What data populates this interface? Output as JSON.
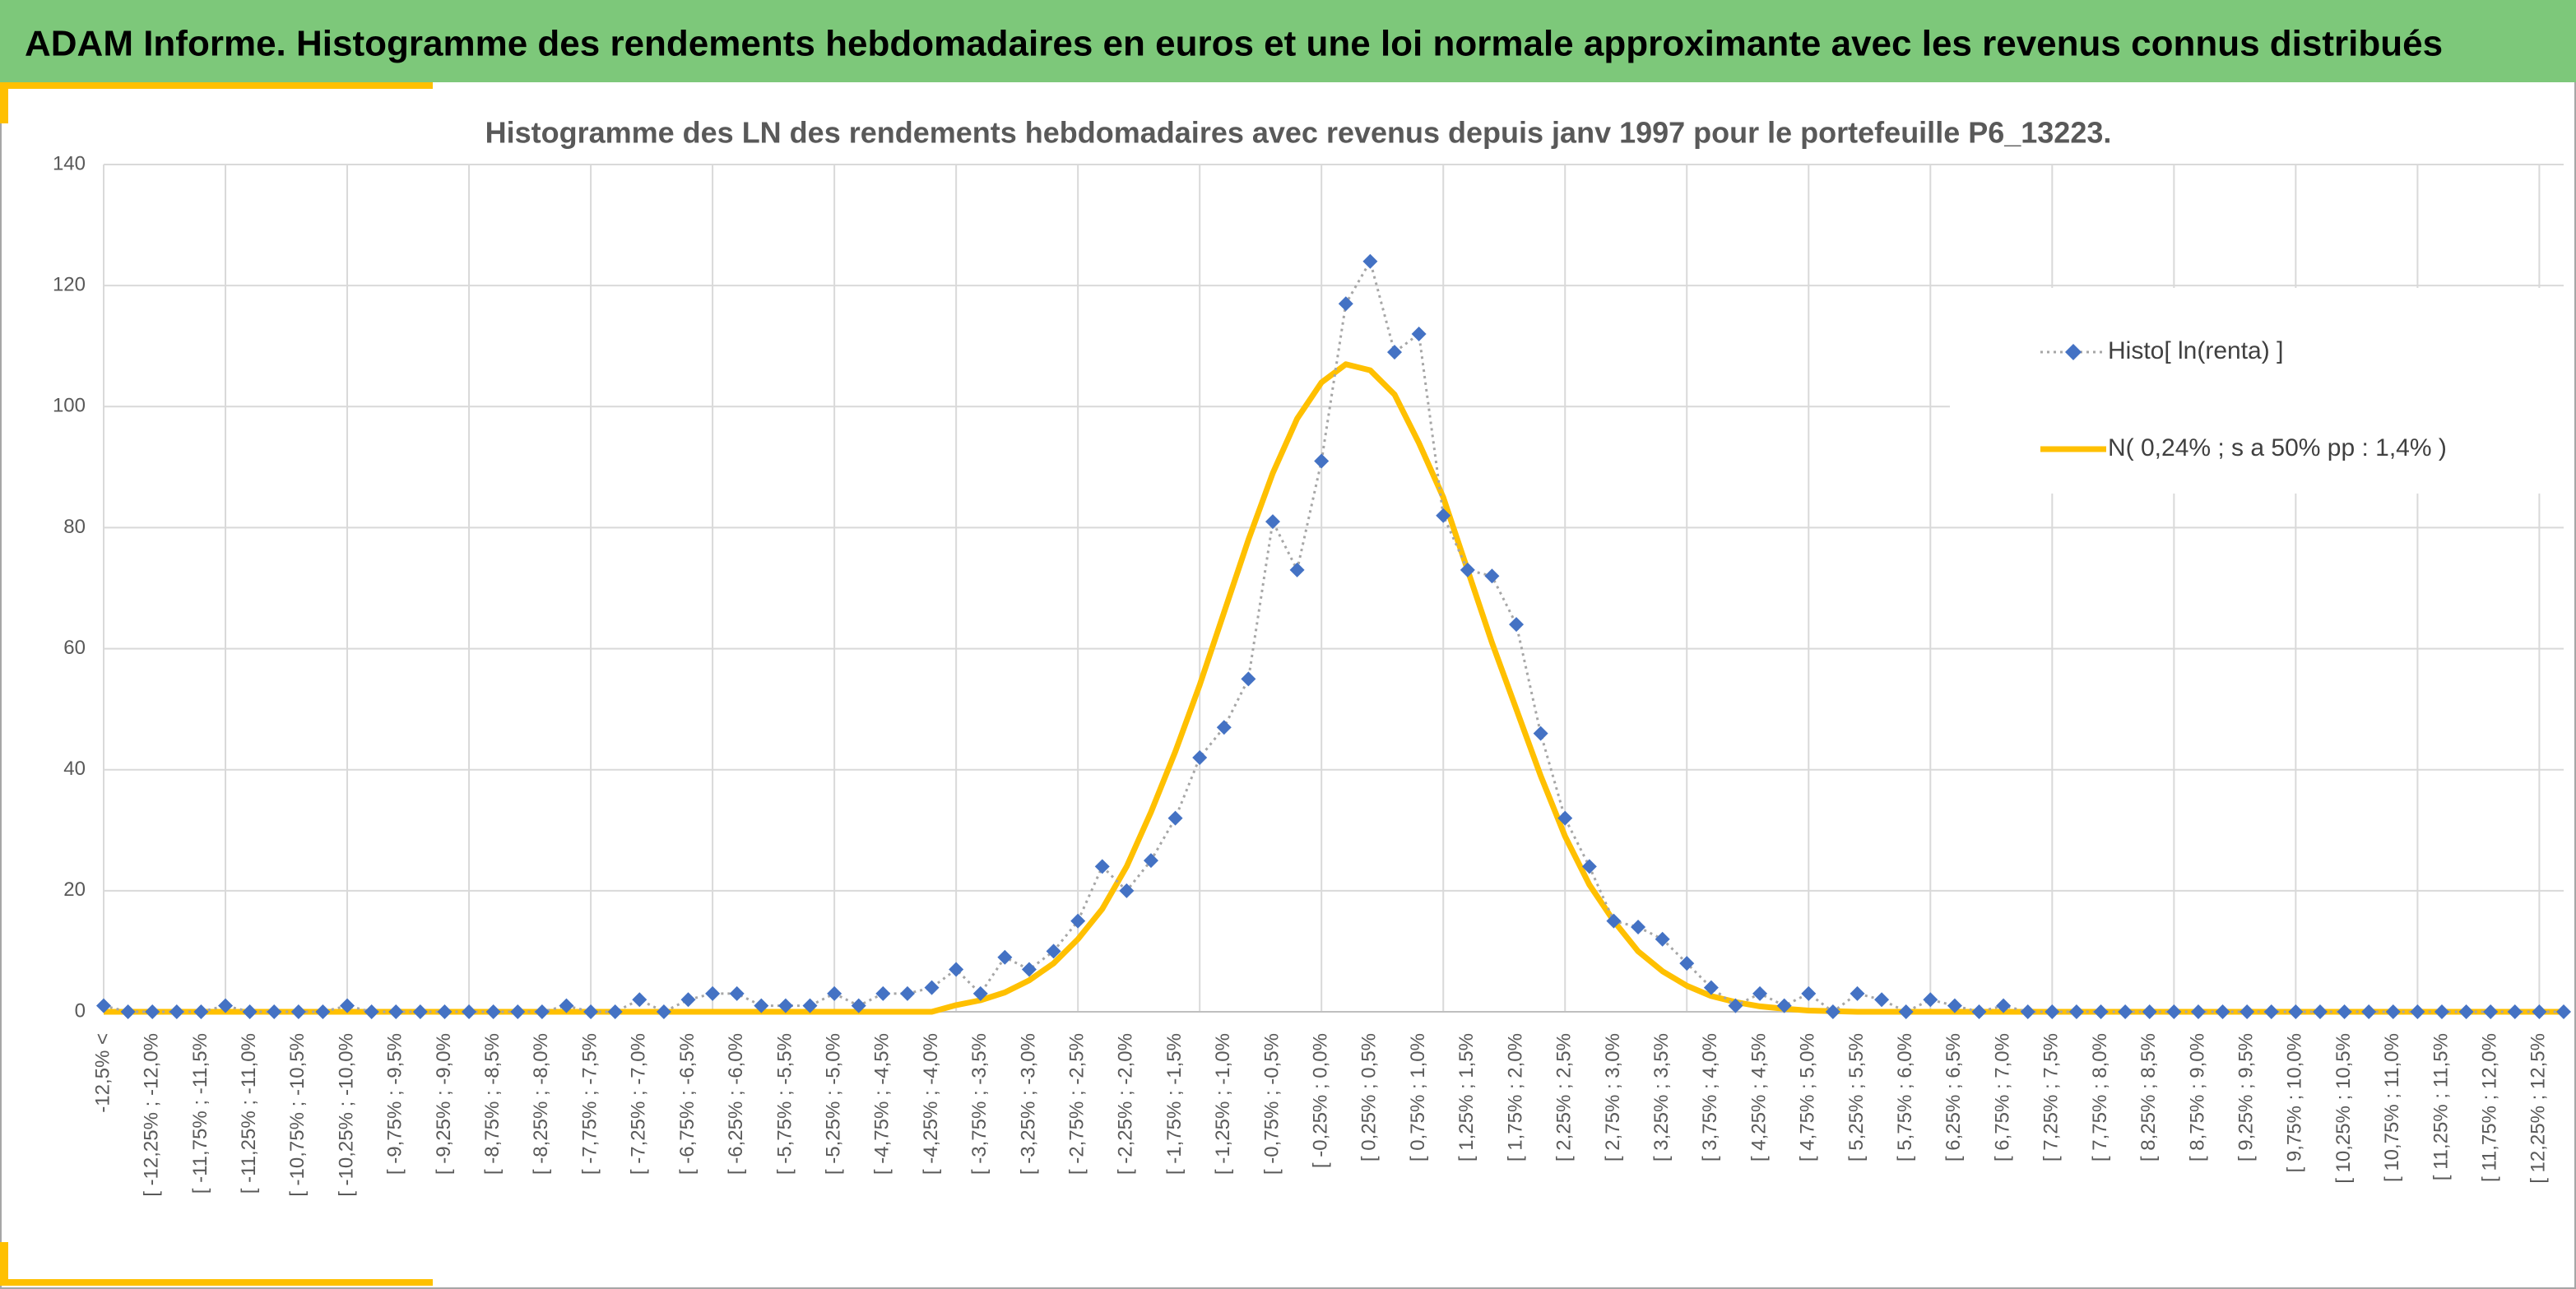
{
  "header": {
    "title": "ADAM Informe. Histogramme des rendements hebdomadaires en euros et une loi normale approximante avec les revenus connus distribués"
  },
  "chart_data": {
    "type": "line",
    "title": "Histogramme des LN des rendements hebdomadaires avec revenus depuis janv 1997 pour le portefeuille P6_13223.",
    "categories": [
      "-12,5% <",
      null,
      "[ -12,25% ; -12,0%",
      null,
      "[ -11,75% ; -11,5%",
      null,
      "[ -11,25% ; -11,0%",
      null,
      "[ -10,75% ; -10,5%",
      null,
      "[ -10,25% ; -10,0%",
      null,
      "[ -9,75% ; -9,5%",
      null,
      "[ -9,25% ; -9,0%",
      null,
      "[ -8,75% ; -8,5%",
      null,
      "[ -8,25% ; -8,0%",
      null,
      "[ -7,75% ; -7,5%",
      null,
      "[ -7,25% ; -7,0%",
      null,
      "[ -6,75% ; -6,5%",
      null,
      "[ -6,25% ; -6,0%",
      null,
      "[ -5,75% ; -5,5%",
      null,
      "[ -5,25% ; -5,0%",
      null,
      "[ -4,75% ; -4,5%",
      null,
      "[ -4,25% ; -4,0%",
      null,
      "[ -3,75% ; -3,5%",
      null,
      "[ -3,25% ; -3,0%",
      null,
      "[ -2,75% ; -2,5%",
      null,
      "[ -2,25% ; -2,0%",
      null,
      "[ -1,75% ; -1,5%",
      null,
      "[ -1,25% ; -1,0%",
      null,
      "[ -0,75% ; -0,5%",
      null,
      "[ -0,25% ; 0,0%",
      null,
      "[ 0,25% ; 0,5%",
      null,
      "[ 0,75% ; 1,0%",
      null,
      "[ 1,25% ; 1,5%",
      null,
      "[ 1,75% ; 2,0%",
      null,
      "[ 2,25% ; 2,5%",
      null,
      "[ 2,75% ; 3,0%",
      null,
      "[ 3,25% ; 3,5%",
      null,
      "[ 3,75% ; 4,0%",
      null,
      "[ 4,25% ; 4,5%",
      null,
      "[ 4,75% ; 5,0%",
      null,
      "[ 5,25% ; 5,5%",
      null,
      "[ 5,75% ; 6,0%",
      null,
      "[ 6,25% ; 6,5%",
      null,
      "[ 6,75% ; 7,0%",
      null,
      "[ 7,25% ; 7,5%",
      null,
      "[ 7,75% ; 8,0%",
      null,
      "[ 8,25% ; 8,5%",
      null,
      "[ 8,75% ; 9,0%",
      null,
      "[ 9,25% ; 9,5%",
      null,
      "[ 9,75% ; 10,0%",
      null,
      "[ 10,25% ; 10,5%",
      null,
      "[ 10,75% ; 11,0%",
      null,
      "[ 11,25% ; 11,5%",
      null,
      "[ 11,75% ; 12,0%",
      null,
      "[ 12,25% ; 12,5%",
      null
    ],
    "series": [
      {
        "name": "Histo[ ln(renta) ]",
        "color": "#4472c4",
        "line_color": "#a6a6a6",
        "marker": "diamond",
        "dash": "dotted",
        "values": [
          1,
          0,
          0,
          0,
          0,
          1,
          0,
          0,
          0,
          0,
          1,
          0,
          0,
          0,
          0,
          0,
          0,
          0,
          0,
          1,
          0,
          0,
          2,
          0,
          2,
          3,
          3,
          1,
          1,
          1,
          3,
          1,
          3,
          3,
          4,
          7,
          3,
          9,
          7,
          10,
          15,
          24,
          20,
          25,
          32,
          42,
          47,
          55,
          81,
          73,
          91,
          117,
          124,
          109,
          112,
          82,
          73,
          72,
          64,
          46,
          32,
          24,
          15,
          14,
          12,
          8,
          4,
          1,
          3,
          1,
          3,
          0,
          3,
          2,
          0,
          2,
          1,
          0,
          1,
          0,
          0,
          0,
          0,
          0,
          0,
          0,
          0,
          0,
          0,
          0,
          0,
          0,
          0,
          0,
          0,
          0,
          0,
          0,
          0,
          0,
          0,
          0
        ]
      },
      {
        "name": "N( 0,24% ; s a 50% pp : 1,4% )",
        "color": "#ffc000",
        "marker": "none",
        "dash": "solid",
        "values": [
          0,
          0,
          0,
          0,
          0,
          0,
          0,
          0,
          0,
          0,
          0,
          0,
          0,
          0,
          0,
          0,
          0,
          0,
          0,
          0,
          0,
          0,
          0,
          0,
          0,
          0,
          0,
          0,
          0,
          0,
          0,
          0,
          0,
          0,
          0,
          1.1,
          1.9,
          3.2,
          5.2,
          8,
          12,
          17,
          24,
          33,
          43,
          54,
          66,
          78,
          89,
          98,
          104,
          107,
          106,
          102,
          94,
          85,
          73,
          61,
          50,
          39,
          29,
          21,
          15,
          10,
          6.7,
          4.3,
          2.6,
          1.6,
          0.9,
          0.5,
          0.2,
          0.1,
          0,
          0,
          0,
          0,
          0,
          0,
          0,
          0,
          0,
          0,
          0,
          0,
          0,
          0,
          0,
          0,
          0,
          0,
          0,
          0,
          0,
          0,
          0,
          0,
          0,
          0,
          0,
          0,
          0,
          0
        ]
      }
    ],
    "ylim": [
      0,
      140
    ],
    "yticks": [
      0,
      20,
      40,
      60,
      80,
      100,
      120,
      140
    ],
    "grid": true,
    "legend": "right"
  }
}
